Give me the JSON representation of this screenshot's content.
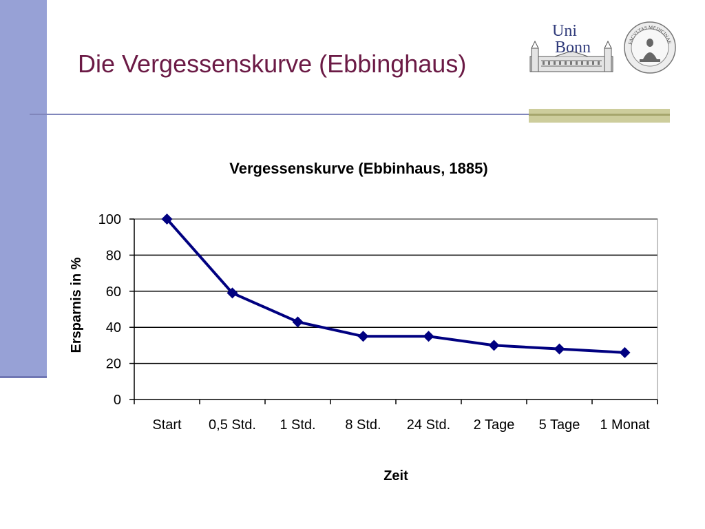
{
  "slide": {
    "title": "Die Vergessenskurve (Ebbinghaus)",
    "logo": {
      "text_line1": "Uni",
      "text_line2": "Bonn"
    },
    "seal": {
      "text": "FACVLTAS MEDICINAE"
    }
  },
  "colors": {
    "title": "#6b1a45",
    "side_bar": "#97a1d6",
    "line": "#000080",
    "accent_rule": "#cdcd9c"
  },
  "chart_data": {
    "type": "line",
    "title": "Vergessenskurve (Ebbinhaus, 1885)",
    "xlabel": "Zeit",
    "ylabel": "Ersparnis in %",
    "categories": [
      "Start",
      "0,5 Std.",
      "1 Std.",
      "8 Std.",
      "24 Std.",
      "2 Tage",
      "5 Tage",
      "1 Monat"
    ],
    "series": [
      {
        "values": [
          100,
          59,
          43,
          35,
          35,
          30,
          28,
          26
        ]
      }
    ],
    "ylim": [
      0,
      100
    ],
    "yticks": [
      0,
      20,
      40,
      60,
      80,
      100
    ],
    "grid": true,
    "legend": "none"
  }
}
